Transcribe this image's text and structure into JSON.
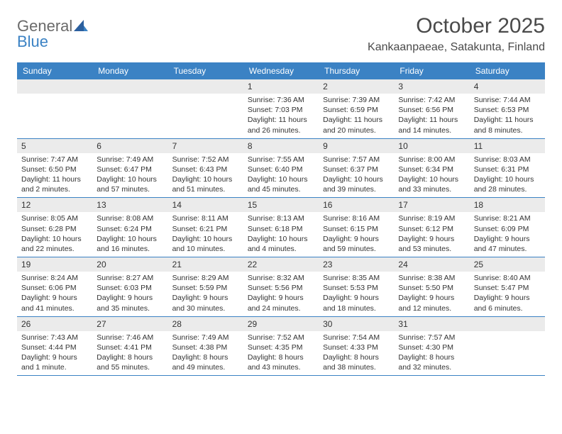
{
  "logo": {
    "line1": "General",
    "line2": "Blue",
    "line2_color": "#3b82c4",
    "sail_color": "#2b5f9e"
  },
  "header": {
    "title": "October 2025",
    "location": "Kankaanpaeae, Satakunta, Finland"
  },
  "colors": {
    "header_bg": "#3b82c4",
    "header_text": "#ffffff",
    "daynum_bg": "#ebebeb",
    "rule": "#3b82c4",
    "text": "#333333"
  },
  "day_labels": [
    "Sunday",
    "Monday",
    "Tuesday",
    "Wednesday",
    "Thursday",
    "Friday",
    "Saturday"
  ],
  "weeks": [
    [
      {
        "n": "",
        "sr": "",
        "ss": "",
        "dl": ""
      },
      {
        "n": "",
        "sr": "",
        "ss": "",
        "dl": ""
      },
      {
        "n": "",
        "sr": "",
        "ss": "",
        "dl": ""
      },
      {
        "n": "1",
        "sr": "Sunrise: 7:36 AM",
        "ss": "Sunset: 7:03 PM",
        "dl": "Daylight: 11 hours and 26 minutes."
      },
      {
        "n": "2",
        "sr": "Sunrise: 7:39 AM",
        "ss": "Sunset: 6:59 PM",
        "dl": "Daylight: 11 hours and 20 minutes."
      },
      {
        "n": "3",
        "sr": "Sunrise: 7:42 AM",
        "ss": "Sunset: 6:56 PM",
        "dl": "Daylight: 11 hours and 14 minutes."
      },
      {
        "n": "4",
        "sr": "Sunrise: 7:44 AM",
        "ss": "Sunset: 6:53 PM",
        "dl": "Daylight: 11 hours and 8 minutes."
      }
    ],
    [
      {
        "n": "5",
        "sr": "Sunrise: 7:47 AM",
        "ss": "Sunset: 6:50 PM",
        "dl": "Daylight: 11 hours and 2 minutes."
      },
      {
        "n": "6",
        "sr": "Sunrise: 7:49 AM",
        "ss": "Sunset: 6:47 PM",
        "dl": "Daylight: 10 hours and 57 minutes."
      },
      {
        "n": "7",
        "sr": "Sunrise: 7:52 AM",
        "ss": "Sunset: 6:43 PM",
        "dl": "Daylight: 10 hours and 51 minutes."
      },
      {
        "n": "8",
        "sr": "Sunrise: 7:55 AM",
        "ss": "Sunset: 6:40 PM",
        "dl": "Daylight: 10 hours and 45 minutes."
      },
      {
        "n": "9",
        "sr": "Sunrise: 7:57 AM",
        "ss": "Sunset: 6:37 PM",
        "dl": "Daylight: 10 hours and 39 minutes."
      },
      {
        "n": "10",
        "sr": "Sunrise: 8:00 AM",
        "ss": "Sunset: 6:34 PM",
        "dl": "Daylight: 10 hours and 33 minutes."
      },
      {
        "n": "11",
        "sr": "Sunrise: 8:03 AM",
        "ss": "Sunset: 6:31 PM",
        "dl": "Daylight: 10 hours and 28 minutes."
      }
    ],
    [
      {
        "n": "12",
        "sr": "Sunrise: 8:05 AM",
        "ss": "Sunset: 6:28 PM",
        "dl": "Daylight: 10 hours and 22 minutes."
      },
      {
        "n": "13",
        "sr": "Sunrise: 8:08 AM",
        "ss": "Sunset: 6:24 PM",
        "dl": "Daylight: 10 hours and 16 minutes."
      },
      {
        "n": "14",
        "sr": "Sunrise: 8:11 AM",
        "ss": "Sunset: 6:21 PM",
        "dl": "Daylight: 10 hours and 10 minutes."
      },
      {
        "n": "15",
        "sr": "Sunrise: 8:13 AM",
        "ss": "Sunset: 6:18 PM",
        "dl": "Daylight: 10 hours and 4 minutes."
      },
      {
        "n": "16",
        "sr": "Sunrise: 8:16 AM",
        "ss": "Sunset: 6:15 PM",
        "dl": "Daylight: 9 hours and 59 minutes."
      },
      {
        "n": "17",
        "sr": "Sunrise: 8:19 AM",
        "ss": "Sunset: 6:12 PM",
        "dl": "Daylight: 9 hours and 53 minutes."
      },
      {
        "n": "18",
        "sr": "Sunrise: 8:21 AM",
        "ss": "Sunset: 6:09 PM",
        "dl": "Daylight: 9 hours and 47 minutes."
      }
    ],
    [
      {
        "n": "19",
        "sr": "Sunrise: 8:24 AM",
        "ss": "Sunset: 6:06 PM",
        "dl": "Daylight: 9 hours and 41 minutes."
      },
      {
        "n": "20",
        "sr": "Sunrise: 8:27 AM",
        "ss": "Sunset: 6:03 PM",
        "dl": "Daylight: 9 hours and 35 minutes."
      },
      {
        "n": "21",
        "sr": "Sunrise: 8:29 AM",
        "ss": "Sunset: 5:59 PM",
        "dl": "Daylight: 9 hours and 30 minutes."
      },
      {
        "n": "22",
        "sr": "Sunrise: 8:32 AM",
        "ss": "Sunset: 5:56 PM",
        "dl": "Daylight: 9 hours and 24 minutes."
      },
      {
        "n": "23",
        "sr": "Sunrise: 8:35 AM",
        "ss": "Sunset: 5:53 PM",
        "dl": "Daylight: 9 hours and 18 minutes."
      },
      {
        "n": "24",
        "sr": "Sunrise: 8:38 AM",
        "ss": "Sunset: 5:50 PM",
        "dl": "Daylight: 9 hours and 12 minutes."
      },
      {
        "n": "25",
        "sr": "Sunrise: 8:40 AM",
        "ss": "Sunset: 5:47 PM",
        "dl": "Daylight: 9 hours and 6 minutes."
      }
    ],
    [
      {
        "n": "26",
        "sr": "Sunrise: 7:43 AM",
        "ss": "Sunset: 4:44 PM",
        "dl": "Daylight: 9 hours and 1 minute."
      },
      {
        "n": "27",
        "sr": "Sunrise: 7:46 AM",
        "ss": "Sunset: 4:41 PM",
        "dl": "Daylight: 8 hours and 55 minutes."
      },
      {
        "n": "28",
        "sr": "Sunrise: 7:49 AM",
        "ss": "Sunset: 4:38 PM",
        "dl": "Daylight: 8 hours and 49 minutes."
      },
      {
        "n": "29",
        "sr": "Sunrise: 7:52 AM",
        "ss": "Sunset: 4:35 PM",
        "dl": "Daylight: 8 hours and 43 minutes."
      },
      {
        "n": "30",
        "sr": "Sunrise: 7:54 AM",
        "ss": "Sunset: 4:33 PM",
        "dl": "Daylight: 8 hours and 38 minutes."
      },
      {
        "n": "31",
        "sr": "Sunrise: 7:57 AM",
        "ss": "Sunset: 4:30 PM",
        "dl": "Daylight: 8 hours and 32 minutes."
      },
      {
        "n": "",
        "sr": "",
        "ss": "",
        "dl": ""
      }
    ]
  ]
}
